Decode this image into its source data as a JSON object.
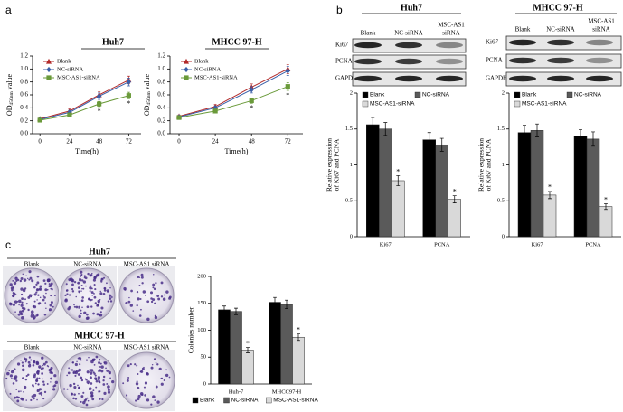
{
  "panel_labels": [
    "a",
    "b",
    "c"
  ],
  "blots": [
    {
      "title": "Huh7",
      "columns": [
        "Blank",
        "NC-siRNA",
        [
          "MSC-AS1",
          "siRNA"
        ]
      ],
      "rows": [
        "Ki67",
        "PCNA",
        "GAPDH"
      ]
    },
    {
      "title": "MHCC 97-H",
      "columns": [
        "Blank",
        "NC-siRNA",
        [
          "MSC-AS1",
          "siRNA"
        ]
      ],
      "rows": [
        "Ki67",
        "PCNA",
        "GAPDH"
      ]
    }
  ],
  "colonies": [
    {
      "title": "Huh7",
      "columns": [
        "Blank",
        "NC-siRNA",
        "MSC-AS1 siRNA"
      ]
    },
    {
      "title": "MHCC 97-H",
      "columns": [
        "Blank",
        "NC-siRNA",
        "MSC-AS1 siRNA"
      ]
    }
  ],
  "chart_data": [
    {
      "type": "line",
      "title": "Huh7",
      "ylabel": {
        "text": "OD",
        "subscript": "450nm",
        "suffix": " value"
      },
      "xlabel": "Time(h)",
      "x": [
        0,
        24,
        48,
        72
      ],
      "xlim": [
        -6,
        82
      ],
      "xticks": [
        0,
        24,
        48,
        72
      ],
      "ylim": [
        0,
        1.2
      ],
      "yticks": [
        {
          "value": 0,
          "label": "0.0"
        },
        0.2,
        0.4,
        0.6,
        0.8,
        {
          "value": 1,
          "label": "1.0"
        },
        1.2
      ],
      "legend": "upper left",
      "series": [
        {
          "name": "Blank",
          "color": "#b22a2a",
          "marker": "triangle",
          "values": [
            0.23,
            0.35,
            0.6,
            0.83
          ],
          "errors": [
            0.02,
            0.03,
            0.05,
            0.06
          ]
        },
        {
          "name": "NC-siRNA",
          "color": "#3a5fa8",
          "marker": "diamond",
          "values": [
            0.22,
            0.33,
            0.58,
            0.8
          ],
          "errors": [
            0.02,
            0.03,
            0.05,
            0.06
          ]
        },
        {
          "name": "MSC-AS1-siRNA",
          "color": "#6a9a3a",
          "marker": "square",
          "values": [
            0.21,
            0.29,
            0.46,
            0.59
          ],
          "errors": [
            0.02,
            0.03,
            0.04,
            0.05
          ],
          "annotations": [
            null,
            null,
            "*",
            "*"
          ]
        }
      ]
    },
    {
      "type": "line",
      "title": "MHCC 97-H",
      "ylabel": {
        "text": "OD",
        "subscript": "450nm",
        "suffix": " value"
      },
      "xlabel": "Time(h)",
      "x": [
        0,
        24,
        48,
        72
      ],
      "xlim": [
        -6,
        82
      ],
      "xticks": [
        0,
        24,
        48,
        72
      ],
      "ylim": [
        0,
        1.2
      ],
      "yticks": [
        {
          "value": 0,
          "label": "0.0"
        },
        0.2,
        0.4,
        0.6,
        0.8,
        {
          "value": 1,
          "label": "1.0"
        },
        1.2
      ],
      "legend": "upper left",
      "series": [
        {
          "name": "Blank",
          "color": "#b22a2a",
          "marker": "triangle",
          "values": [
            0.27,
            0.42,
            0.72,
            1.0
          ],
          "errors": [
            0.02,
            0.03,
            0.05,
            0.07
          ]
        },
        {
          "name": "NC-siRNA",
          "color": "#3a5fa8",
          "marker": "diamond",
          "values": [
            0.26,
            0.4,
            0.68,
            0.97
          ],
          "errors": [
            0.02,
            0.03,
            0.05,
            0.07
          ]
        },
        {
          "name": "MSC-AS1-siRNA",
          "color": "#6a9a3a",
          "marker": "square",
          "values": [
            0.25,
            0.35,
            0.51,
            0.73
          ],
          "errors": [
            0.02,
            0.03,
            0.04,
            0.06
          ],
          "annotations": [
            null,
            null,
            "*",
            "*"
          ]
        }
      ]
    },
    {
      "type": "bar",
      "categories": [
        "Ki67",
        "PCNA"
      ],
      "ylabel": [
        "Relative expression",
        "of Ki67 and PCNA"
      ],
      "ylim": [
        0,
        2
      ],
      "yticks": [
        0,
        0.5,
        1,
        1.5,
        2
      ],
      "legend": "upper left",
      "series": [
        {
          "name": "Blank",
          "color": "#000000",
          "values": [
            1.56,
            1.35
          ],
          "errors": [
            0.1,
            0.1
          ]
        },
        {
          "name": "NC-siRNA",
          "color": "#5a5a5a",
          "values": [
            1.5,
            1.28
          ],
          "errors": [
            0.09,
            0.09
          ]
        },
        {
          "name": "MSC-AS1-siRNA",
          "color": "#d9d9d9",
          "values": [
            0.78,
            0.52
          ],
          "errors": [
            0.07,
            0.05
          ],
          "annotations": [
            "*",
            "*"
          ]
        }
      ]
    },
    {
      "type": "bar",
      "categories": [
        "Ki67",
        "PCNA"
      ],
      "ylabel": [
        "Relative expression",
        "of Ki67 and PCNA"
      ],
      "ylim": [
        0,
        2
      ],
      "yticks": [
        0,
        0.5,
        1,
        1.5,
        2
      ],
      "legend": "upper left",
      "series": [
        {
          "name": "Blank",
          "color": "#000000",
          "values": [
            1.45,
            1.4
          ],
          "errors": [
            0.1,
            0.09
          ]
        },
        {
          "name": "NC-siRNA",
          "color": "#5a5a5a",
          "values": [
            1.48,
            1.36
          ],
          "errors": [
            0.09,
            0.1
          ]
        },
        {
          "name": "MSC-AS1-siRNA",
          "color": "#d9d9d9",
          "values": [
            0.58,
            0.42
          ],
          "errors": [
            0.05,
            0.04
          ],
          "annotations": [
            "*",
            "*"
          ]
        }
      ]
    },
    {
      "type": "bar",
      "categories": [
        "Huh-7",
        "MHCC97-H"
      ],
      "ylabel": [
        "Colonies number"
      ],
      "ylim": [
        0,
        200
      ],
      "yticks": [
        0,
        50,
        100,
        150,
        200
      ],
      "legend": "lower center",
      "series": [
        {
          "name": "Blank",
          "color": "#000000",
          "values": [
            138,
            152
          ],
          "errors": [
            7,
            9
          ]
        },
        {
          "name": "NC-siRNA",
          "color": "#5a5a5a",
          "values": [
            135,
            148
          ],
          "errors": [
            6,
            8
          ]
        },
        {
          "name": "MSC-AS1-siRNA",
          "color": "#d9d9d9",
          "values": [
            63,
            87
          ],
          "errors": [
            5,
            6
          ],
          "annotations": [
            "*",
            "*"
          ]
        }
      ]
    }
  ]
}
